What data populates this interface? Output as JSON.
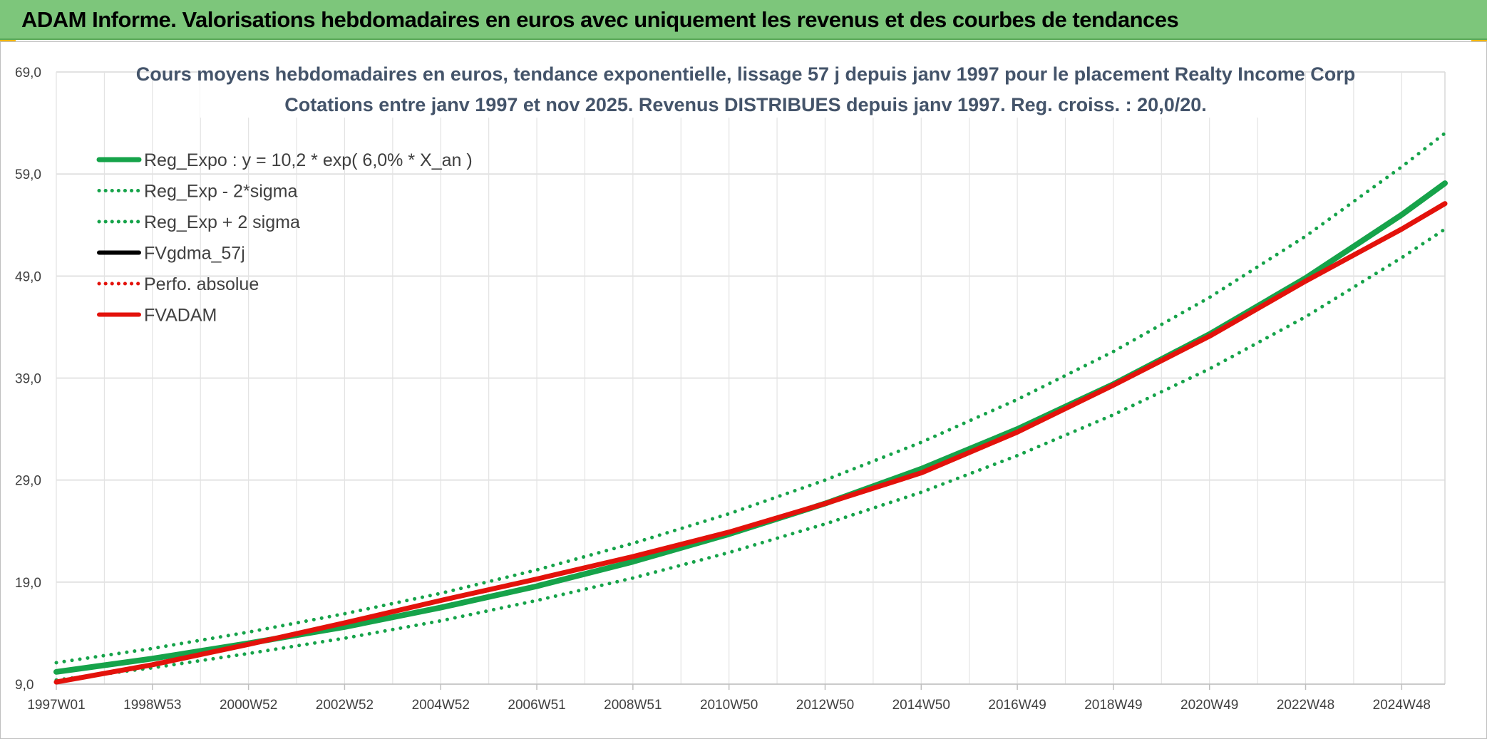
{
  "banner": {
    "title": "ADAM Informe. Valorisations hebdomadaires en euros avec uniquement les revenus et des courbes de tendances",
    "accent_color": "#7dc67b"
  },
  "chart_data": {
    "type": "line",
    "title_line1": "Cours moyens hebdomadaires en euros, tendance exponentielle, lissage 57 j depuis janv 1997 pour le placement Realty Income Corp",
    "title_line2": "Cotations entre janv 1997 et nov 2025. Revenus DISTRIBUES depuis janv 1997. Reg. croiss. : 20,0/20.",
    "xlabel": "",
    "ylabel": "",
    "x_range": [
      1997.0,
      2025.9
    ],
    "ylim": [
      9.0,
      69.0
    ],
    "y_ticks": [
      "9,0",
      "19,0",
      "29,0",
      "39,0",
      "49,0",
      "59,0",
      "69,0"
    ],
    "x_ticks": [
      {
        "label": "1997W01",
        "x": 1997.0
      },
      {
        "label": "1998W53",
        "x": 1999.0
      },
      {
        "label": "2000W52",
        "x": 2001.0
      },
      {
        "label": "2002W52",
        "x": 2003.0
      },
      {
        "label": "2004W52",
        "x": 2005.0
      },
      {
        "label": "2006W51",
        "x": 2007.0
      },
      {
        "label": "2008W51",
        "x": 2009.0
      },
      {
        "label": "2010W50",
        "x": 2011.0
      },
      {
        "label": "2012W50",
        "x": 2013.0
      },
      {
        "label": "2014W50",
        "x": 2015.0
      },
      {
        "label": "2016W49",
        "x": 2017.0
      },
      {
        "label": "2018W49",
        "x": 2019.0
      },
      {
        "label": "2020W49",
        "x": 2021.0
      },
      {
        "label": "2022W48",
        "x": 2023.0
      },
      {
        "label": "2024W48",
        "x": 2025.0
      }
    ],
    "grid": true,
    "legend_position": "top-left",
    "series": [
      {
        "name": "Reg_Expo : y = 10,2 * exp( 6,0% *  X_an )",
        "color": "#16a34a",
        "style": "solid",
        "x": [
          1997.0,
          1999.0,
          2001.0,
          2003.0,
          2005.0,
          2007.0,
          2009.0,
          2011.0,
          2013.0,
          2015.0,
          2017.0,
          2019.0,
          2021.0,
          2023.0,
          2025.0,
          2025.9
        ],
        "y": [
          10.2,
          11.5,
          13.0,
          14.6,
          16.5,
          18.6,
          21.0,
          23.7,
          26.7,
          30.1,
          34.0,
          38.4,
          43.3,
          48.8,
          55.0,
          58.1
        ]
      },
      {
        "name": "Reg_Exp - 2*sigma",
        "color": "#16a34a",
        "style": "dotted",
        "x": [
          1997.0,
          1999.0,
          2001.0,
          2003.0,
          2005.0,
          2007.0,
          2009.0,
          2011.0,
          2013.0,
          2015.0,
          2017.0,
          2019.0,
          2021.0,
          2023.0,
          2025.0,
          2025.9
        ],
        "y": [
          9.4,
          10.6,
          12.0,
          13.5,
          15.2,
          17.2,
          19.4,
          21.9,
          24.7,
          27.8,
          31.4,
          35.4,
          39.9,
          45.0,
          50.8,
          53.6
        ]
      },
      {
        "name": "Reg_Exp + 2 sigma",
        "color": "#16a34a",
        "style": "dotted",
        "x": [
          1997.0,
          1999.0,
          2001.0,
          2003.0,
          2005.0,
          2007.0,
          2009.0,
          2011.0,
          2013.0,
          2015.0,
          2017.0,
          2019.0,
          2021.0,
          2023.0,
          2025.0,
          2025.9
        ],
        "y": [
          11.1,
          12.5,
          14.1,
          15.9,
          17.9,
          20.2,
          22.8,
          25.7,
          29.0,
          32.7,
          36.9,
          41.6,
          46.9,
          52.9,
          59.7,
          63.0
        ]
      },
      {
        "name": "FVgdma_57j",
        "color": "#000000",
        "style": "solid",
        "x": [],
        "y": []
      },
      {
        "name": "Perfo. absolue",
        "color": "#e3120b",
        "style": "dotted",
        "x": [
          1997.0,
          1999.0,
          2001.0,
          2003.0,
          2005.0,
          2007.0,
          2009.0,
          2011.0,
          2013.0,
          2015.0,
          2017.0,
          2019.0,
          2021.0,
          2023.0,
          2025.0,
          2025.9
        ],
        "y": [
          9.2,
          10.9,
          12.9,
          15.0,
          17.2,
          19.3,
          21.5,
          23.9,
          26.7,
          29.7,
          33.7,
          38.3,
          43.1,
          48.5,
          53.6,
          56.1
        ]
      },
      {
        "name": "FVADAM",
        "color": "#e3120b",
        "style": "solid",
        "x": [
          1997.0,
          1999.0,
          2001.0,
          2003.0,
          2005.0,
          2007.0,
          2009.0,
          2011.0,
          2013.0,
          2015.0,
          2017.0,
          2019.0,
          2021.0,
          2023.0,
          2025.0,
          2025.9
        ],
        "y": [
          9.2,
          10.9,
          12.9,
          15.0,
          17.2,
          19.3,
          21.5,
          23.9,
          26.7,
          29.7,
          33.7,
          38.3,
          43.1,
          48.5,
          53.6,
          56.1
        ]
      }
    ]
  }
}
